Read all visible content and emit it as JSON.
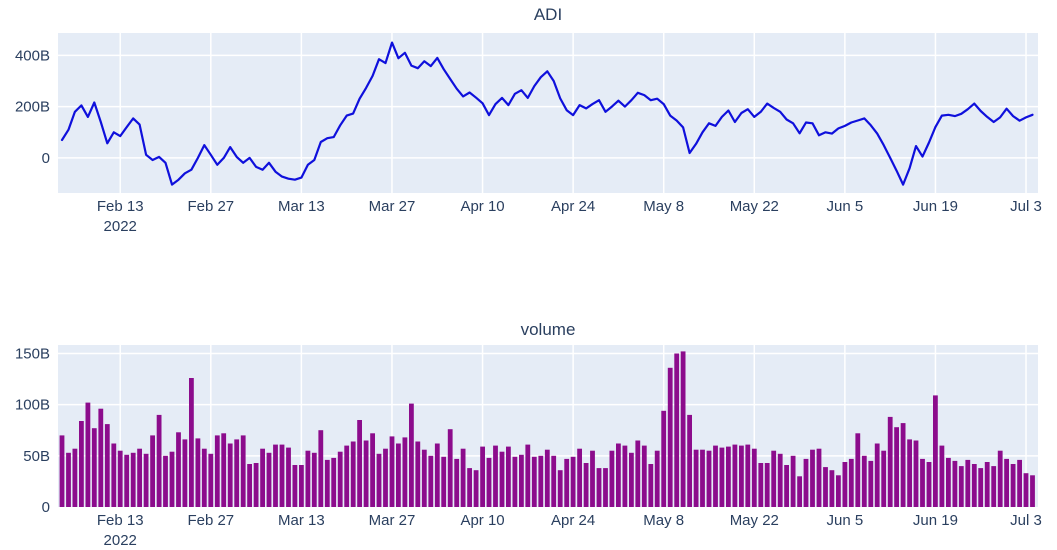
{
  "style": {
    "plot_bg": "#e5ecf6",
    "grid_color": "#ffffff",
    "text_color": "#2a3f5f",
    "paper_bg": "#ffffff"
  },
  "chart_data": [
    {
      "type": "line",
      "title": "ADI",
      "unit": "B",
      "x_start": "2022-02-04",
      "x_freq": "daily",
      "line_color": "#0f10dc",
      "ylim": [
        -137,
        487
      ],
      "y_ticks": [
        {
          "value": 0,
          "label": "0"
        },
        {
          "value": 200,
          "label": "200B"
        },
        {
          "value": 400,
          "label": "400B"
        }
      ],
      "x_ticks": [
        {
          "pos": 9,
          "label": "Feb 13",
          "sublabel": "2022"
        },
        {
          "pos": 23,
          "label": "Feb 27"
        },
        {
          "pos": 37,
          "label": "Mar 13"
        },
        {
          "pos": 51,
          "label": "Mar 27"
        },
        {
          "pos": 65,
          "label": "Apr 10"
        },
        {
          "pos": 79,
          "label": "Apr 24"
        },
        {
          "pos": 93,
          "label": "May 8"
        },
        {
          "pos": 107,
          "label": "May 22"
        },
        {
          "pos": 121,
          "label": "Jun 5"
        },
        {
          "pos": 135,
          "label": "Jun 19"
        },
        {
          "pos": 149,
          "label": "Jul 3"
        }
      ],
      "values": [
        70,
        110,
        180,
        205,
        160,
        216,
        140,
        57,
        100,
        85,
        120,
        154,
        130,
        12,
        -8,
        4,
        -19,
        -104,
        -85,
        -60,
        -46,
        0,
        50,
        12,
        -27,
        0,
        42,
        4,
        -19,
        0,
        -35,
        -46,
        -19,
        -54,
        -73,
        -81,
        -85,
        -77,
        -27,
        -8,
        62,
        77,
        81,
        127,
        165,
        173,
        231,
        273,
        320,
        385,
        370,
        450,
        389,
        410,
        360,
        350,
        377,
        358,
        390,
        346,
        308,
        270,
        240,
        255,
        235,
        213,
        167,
        210,
        234,
        206,
        250,
        264,
        234,
        280,
        315,
        338,
        300,
        232,
        186,
        167,
        206,
        193,
        210,
        225,
        180,
        200,
        223,
        200,
        225,
        254,
        245,
        225,
        231,
        210,
        165,
        146,
        119,
        19,
        55,
        100,
        135,
        125,
        160,
        185,
        140,
        175,
        190,
        160,
        180,
        212,
        195,
        180,
        150,
        135,
        96,
        138,
        135,
        88,
        100,
        95,
        115,
        125,
        138,
        146,
        154,
        127,
        95,
        50,
        0,
        -50,
        -104,
        -40,
        46,
        5,
        60,
        120,
        165,
        168,
        163,
        172,
        190,
        212,
        183,
        160,
        140,
        158,
        192,
        163,
        145,
        158,
        168
      ]
    },
    {
      "type": "bar",
      "title": "volume",
      "unit": "B",
      "x_start": "2022-02-04",
      "x_freq": "daily",
      "bar_color": "#8c0c8c",
      "ylim": [
        0,
        158
      ],
      "y_ticks": [
        {
          "value": 0,
          "label": "0"
        },
        {
          "value": 50,
          "label": "50B"
        },
        {
          "value": 100,
          "label": "100B"
        },
        {
          "value": 150,
          "label": "150B"
        }
      ],
      "x_ticks": [
        {
          "pos": 9,
          "label": "Feb 13",
          "sublabel": "2022"
        },
        {
          "pos": 23,
          "label": "Feb 27"
        },
        {
          "pos": 37,
          "label": "Mar 13"
        },
        {
          "pos": 51,
          "label": "Mar 27"
        },
        {
          "pos": 65,
          "label": "Apr 10"
        },
        {
          "pos": 79,
          "label": "Apr 24"
        },
        {
          "pos": 93,
          "label": "May 8"
        },
        {
          "pos": 107,
          "label": "May 22"
        },
        {
          "pos": 121,
          "label": "Jun 5"
        },
        {
          "pos": 135,
          "label": "Jun 19"
        },
        {
          "pos": 149,
          "label": "Jul 3"
        }
      ],
      "values": [
        70,
        53,
        57,
        84,
        102,
        77,
        96,
        81,
        62,
        55,
        51,
        53,
        57,
        52,
        70,
        90,
        50,
        54,
        73,
        66,
        126,
        67,
        57,
        52,
        70,
        72,
        62,
        66,
        70,
        42,
        43,
        57,
        53,
        61,
        61,
        58,
        41,
        41,
        55,
        53,
        75,
        46,
        48,
        54,
        60,
        64,
        85,
        65,
        72,
        52,
        57,
        69,
        62,
        68,
        101,
        64,
        56,
        50,
        62,
        49,
        76,
        47,
        57,
        38,
        36,
        59,
        48,
        60,
        54,
        59,
        49,
        51,
        61,
        49,
        50,
        56,
        50,
        36,
        47,
        49,
        57,
        43,
        55,
        38,
        38,
        55,
        62,
        60,
        53,
        65,
        60,
        42,
        55,
        94,
        136,
        150,
        152,
        90,
        56,
        56,
        55,
        60,
        58,
        59,
        61,
        60,
        61,
        57,
        43,
        43,
        55,
        52,
        41,
        50,
        30,
        47,
        56,
        57,
        39,
        36,
        31,
        44,
        47,
        72,
        50,
        45,
        62,
        55,
        88,
        78,
        82,
        66,
        65,
        47,
        44,
        109,
        60,
        48,
        45,
        40,
        46,
        42,
        38,
        44,
        40,
        55,
        47,
        42,
        46,
        33,
        31
      ]
    }
  ]
}
